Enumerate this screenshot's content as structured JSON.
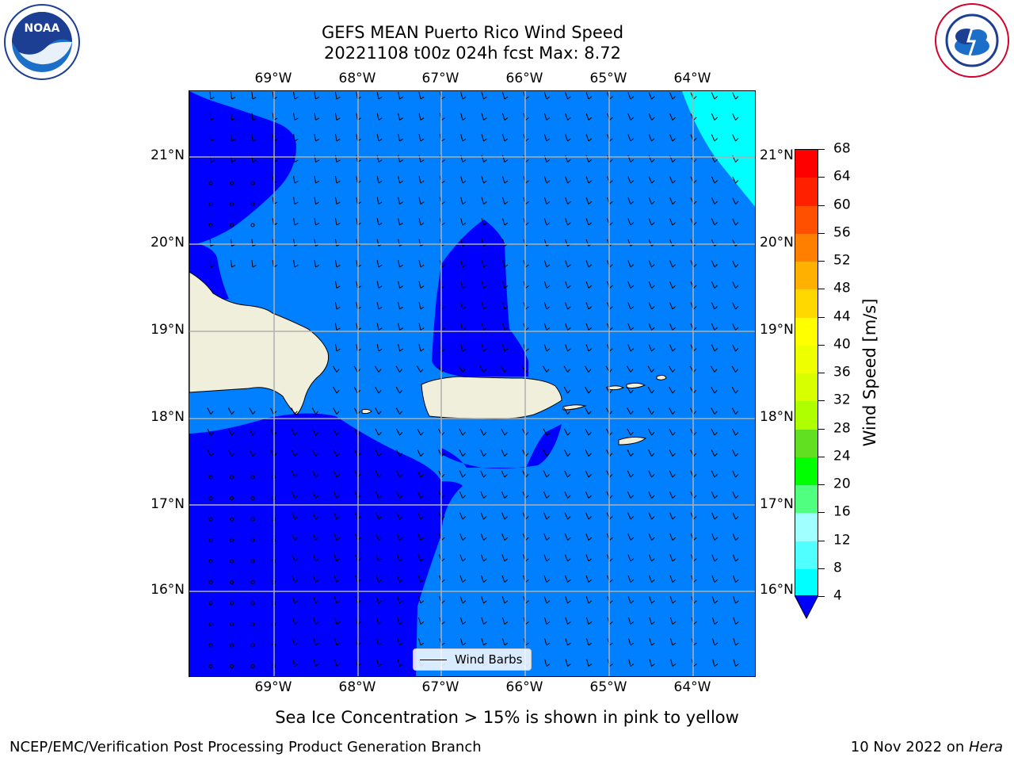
{
  "title": {
    "line1": "GEFS MEAN Puerto Rico Wind Speed",
    "line2": "20221108 t00z 024h fcst   Max: 8.72"
  },
  "map": {
    "lon_labels": [
      "69°W",
      "68°W",
      "67°W",
      "66°W",
      "65°W",
      "64°W"
    ],
    "lat_labels": [
      "21°N",
      "20°N",
      "19°N",
      "18°N",
      "17°N",
      "16°N"
    ],
    "legend_label": "Wind Barbs",
    "fill_colors": {
      "level_4_8": "#0080ff",
      "below_4": "#0000ff",
      "level_8_12": "#00ffff",
      "land": "#efefdc"
    }
  },
  "colorbar": {
    "title": "Wind Speed [m/s]",
    "ticks": [
      "68",
      "64",
      "60",
      "56",
      "52",
      "48",
      "44",
      "40",
      "36",
      "32",
      "28",
      "24",
      "20",
      "16",
      "12",
      "8",
      "4"
    ],
    "colors": [
      "#ff0000",
      "#ff2000",
      "#ff5000",
      "#ff8000",
      "#ffb000",
      "#ffd800",
      "#ffff00",
      "#eeff00",
      "#d8ff00",
      "#b0ff00",
      "#60e020",
      "#00ff00",
      "#50ff80",
      "#a0ffff",
      "#50ffff",
      "#00ffff",
      "#0080ff"
    ],
    "underflow_color": "#0000ff"
  },
  "footer": {
    "sea_ice_note": "Sea Ice Concentration > 15% is shown in pink to yellow",
    "credit": "NCEP/EMC/Verification Post Processing Product Generation Branch",
    "date_prefix": "10 Nov 2022 on ",
    "date_machine": "Hera"
  },
  "logos": {
    "left": "NOAA",
    "right": "NATIONAL WEATHER SERVICE"
  }
}
